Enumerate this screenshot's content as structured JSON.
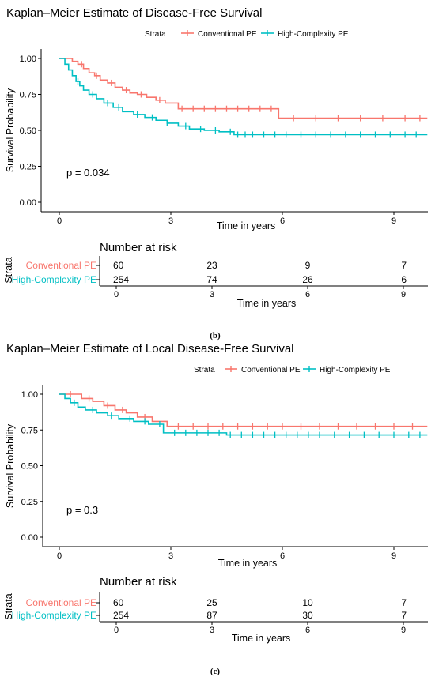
{
  "colors": {
    "conventional": "#f8766d",
    "high_complexity": "#00bfc4"
  },
  "chart_data": [
    {
      "type": "line",
      "caption": "(b)",
      "title": "Kaplan–Meier Estimate of Disease-Free Survival",
      "legend_title": "Strata",
      "legend_position": "top",
      "xlabel": "Time in years",
      "ylabel": "Survival Probability",
      "xlim": [
        -0.5,
        9.9
      ],
      "ylim": [
        0,
        1
      ],
      "xticks": [
        "0",
        "3",
        "6",
        "9"
      ],
      "yticks": [
        "0.00",
        "0.25",
        "0.50",
        "0.75",
        "1.00"
      ],
      "grid": false,
      "p_value": "p = 0.034",
      "series": [
        {
          "name": "Conventional PE",
          "x": [
            0,
            0.35,
            0.5,
            0.65,
            0.8,
            0.95,
            1.1,
            1.3,
            1.5,
            1.7,
            1.9,
            2.1,
            2.35,
            2.6,
            2.85,
            3.2,
            5.9,
            9.9
          ],
          "y": [
            1.0,
            0.98,
            0.96,
            0.93,
            0.9,
            0.88,
            0.85,
            0.83,
            0.8,
            0.78,
            0.76,
            0.75,
            0.73,
            0.71,
            0.69,
            0.65,
            0.585,
            0.585
          ],
          "censor_x": [
            0.6,
            1.0,
            1.4,
            1.8,
            2.2,
            2.7,
            3.3,
            3.6,
            3.9,
            4.2,
            4.5,
            4.8,
            5.1,
            5.4,
            5.7,
            6.3,
            6.9,
            7.5,
            8.1,
            8.7,
            9.3,
            9.7
          ]
        },
        {
          "name": "High-Complexity PE",
          "x": [
            0,
            0.15,
            0.25,
            0.35,
            0.45,
            0.55,
            0.65,
            0.8,
            1.0,
            1.2,
            1.45,
            1.7,
            2.0,
            2.3,
            2.6,
            2.9,
            3.2,
            3.5,
            3.9,
            4.3,
            4.7,
            9.9
          ],
          "y": [
            1.0,
            0.96,
            0.92,
            0.88,
            0.84,
            0.81,
            0.78,
            0.75,
            0.72,
            0.69,
            0.66,
            0.63,
            0.61,
            0.59,
            0.57,
            0.55,
            0.53,
            0.51,
            0.5,
            0.49,
            0.47,
            0.47
          ],
          "censor_x": [
            0.5,
            0.9,
            1.3,
            1.6,
            2.1,
            2.5,
            2.9,
            3.4,
            3.8,
            4.2,
            4.6,
            4.8,
            5.0,
            5.2,
            5.5,
            5.8,
            6.1,
            6.5,
            6.9,
            7.3,
            7.7,
            8.1,
            8.5,
            8.9,
            9.3,
            9.6
          ]
        }
      ],
      "risk_table": {
        "title": "Number at risk",
        "ylabel": "Strata",
        "xlabel": "Time in years",
        "times": [
          "0",
          "3",
          "6",
          "9"
        ],
        "rows": [
          {
            "label": "Conventional PE",
            "values": [
              "60",
              "23",
              "9",
              "7"
            ]
          },
          {
            "label": "High-Complexity PE",
            "values": [
              "254",
              "74",
              "26",
              "6"
            ]
          }
        ]
      }
    },
    {
      "type": "line",
      "caption": "(c)",
      "title": "Kaplan–Meier Estimate of Local Disease-Free Survival",
      "legend_title": "Strata",
      "legend_position": "top",
      "xlabel": "Time in years",
      "ylabel": "Survival Probability",
      "xlim": [
        -0.5,
        9.9
      ],
      "ylim": [
        0,
        1
      ],
      "xticks": [
        "0",
        "3",
        "6",
        "9"
      ],
      "yticks": [
        "0.00",
        "0.25",
        "0.50",
        "0.75",
        "1.00"
      ],
      "grid": false,
      "p_value": "p = 0.3",
      "series": [
        {
          "name": "Conventional PE",
          "x": [
            0,
            0.6,
            0.9,
            1.2,
            1.5,
            1.8,
            2.1,
            2.5,
            2.9,
            9.9
          ],
          "y": [
            1.0,
            0.97,
            0.95,
            0.92,
            0.89,
            0.87,
            0.84,
            0.81,
            0.775,
            0.775
          ],
          "censor_x": [
            0.3,
            0.8,
            1.3,
            1.7,
            2.3,
            3.2,
            3.6,
            4.0,
            4.4,
            4.8,
            5.2,
            5.6,
            6.0,
            6.5,
            7.0,
            7.5,
            8.0,
            8.5,
            9.0,
            9.5
          ]
        },
        {
          "name": "High-Complexity PE",
          "x": [
            0,
            0.15,
            0.3,
            0.5,
            0.7,
            1.0,
            1.3,
            1.6,
            2.0,
            2.4,
            2.8,
            4.5,
            9.9
          ],
          "y": [
            1.0,
            0.97,
            0.94,
            0.91,
            0.89,
            0.87,
            0.85,
            0.83,
            0.81,
            0.79,
            0.73,
            0.715,
            0.715
          ],
          "censor_x": [
            0.4,
            0.9,
            1.4,
            1.9,
            2.3,
            2.7,
            3.1,
            3.4,
            3.7,
            4.0,
            4.3,
            4.6,
            4.9,
            5.2,
            5.5,
            5.8,
            6.1,
            6.4,
            6.7,
            7.0,
            7.4,
            7.8,
            8.2,
            8.6,
            9.0,
            9.4,
            9.7
          ]
        }
      ],
      "risk_table": {
        "title": "Number at risk",
        "ylabel": "Strata",
        "xlabel": "Time in years",
        "times": [
          "0",
          "3",
          "6",
          "9"
        ],
        "rows": [
          {
            "label": "Conventional PE",
            "values": [
              "60",
              "25",
              "10",
              "7"
            ]
          },
          {
            "label": "High-Complexity PE",
            "values": [
              "254",
              "87",
              "30",
              "7"
            ]
          }
        ]
      }
    }
  ]
}
